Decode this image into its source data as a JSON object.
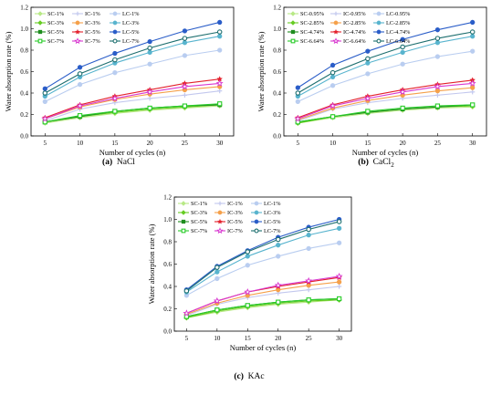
{
  "chart_data": [
    {
      "type": "line",
      "caption_letter": "(a)",
      "caption_name": "NaCl",
      "caption_sub": "",
      "xlabel": "Number of cycles (n)",
      "ylabel": "Water absorption rate (%)",
      "x": [
        5,
        10,
        15,
        20,
        25,
        30
      ],
      "xlim": [
        3,
        32
      ],
      "ylim": [
        0,
        1.2
      ],
      "yticks": [
        "0.0",
        "0.2",
        "0.4",
        "0.6",
        "0.8",
        "1.0",
        "1.2"
      ],
      "legend_position": "top-left",
      "series": [
        {
          "name": "SC-1%",
          "color": "#b8e986",
          "marker": "diamond",
          "values": [
            0.12,
            0.17,
            0.21,
            0.24,
            0.26,
            0.28
          ]
        },
        {
          "name": "IC-1%",
          "color": "#c3c8ee",
          "marker": "plus",
          "values": [
            0.14,
            0.25,
            0.31,
            0.35,
            0.38,
            0.42
          ]
        },
        {
          "name": "LC-1%",
          "color": "#b9cdf0",
          "marker": "circle",
          "values": [
            0.32,
            0.48,
            0.59,
            0.67,
            0.75,
            0.8
          ]
        },
        {
          "name": "SC-3%",
          "color": "#66cc22",
          "marker": "diamond",
          "values": [
            0.13,
            0.18,
            0.22,
            0.25,
            0.27,
            0.29
          ]
        },
        {
          "name": "IC-3%",
          "color": "#f5a04a",
          "marker": "circle",
          "values": [
            0.16,
            0.27,
            0.34,
            0.39,
            0.43,
            0.46
          ]
        },
        {
          "name": "LC-3%",
          "color": "#58b4ce",
          "marker": "circle",
          "values": [
            0.37,
            0.55,
            0.68,
            0.78,
            0.87,
            0.93
          ]
        },
        {
          "name": "SC-5%",
          "color": "#1e8c1e",
          "marker": "square",
          "values": [
            0.13,
            0.18,
            0.23,
            0.26,
            0.28,
            0.29
          ]
        },
        {
          "name": "IC-5%",
          "color": "#e3202b",
          "marker": "star",
          "values": [
            0.17,
            0.29,
            0.37,
            0.43,
            0.49,
            0.53
          ]
        },
        {
          "name": "LC-5%",
          "color": "#2a5dc8",
          "marker": "circle",
          "values": [
            0.44,
            0.64,
            0.77,
            0.88,
            0.98,
            1.06
          ]
        },
        {
          "name": "SC-7%",
          "color": "#28cc28",
          "marker": "square-open",
          "values": [
            0.13,
            0.19,
            0.23,
            0.26,
            0.28,
            0.3
          ]
        },
        {
          "name": "IC-7%",
          "color": "#d838d0",
          "marker": "star-open",
          "values": [
            0.16,
            0.28,
            0.35,
            0.41,
            0.46,
            0.49
          ]
        },
        {
          "name": "LC-7%",
          "color": "#1c6e6e",
          "marker": "circle-open",
          "values": [
            0.4,
            0.58,
            0.71,
            0.82,
            0.91,
            0.97
          ]
        }
      ]
    },
    {
      "type": "line",
      "caption_letter": "(b)",
      "caption_name": "CaCl",
      "caption_sub": "2",
      "xlabel": "Number of cycles (n)",
      "ylabel": "Water absorption rate (%)",
      "x": [
        5,
        10,
        15,
        20,
        25,
        30
      ],
      "xlim": [
        3,
        32
      ],
      "ylim": [
        0,
        1.2
      ],
      "yticks": [
        "0.0",
        "0.2",
        "0.4",
        "0.6",
        "0.8",
        "1.0",
        "1.2"
      ],
      "legend_position": "top-left",
      "series": [
        {
          "name": "SC-0.95%",
          "color": "#b8e986",
          "marker": "diamond",
          "values": [
            0.12,
            0.17,
            0.21,
            0.24,
            0.26,
            0.27
          ]
        },
        {
          "name": "IC-0.95%",
          "color": "#c3c8ee",
          "marker": "plus",
          "values": [
            0.14,
            0.25,
            0.31,
            0.35,
            0.38,
            0.41
          ]
        },
        {
          "name": "LC-0.95%",
          "color": "#b9cdf0",
          "marker": "circle",
          "values": [
            0.32,
            0.47,
            0.58,
            0.67,
            0.74,
            0.79
          ]
        },
        {
          "name": "SC-2.85%",
          "color": "#66cc22",
          "marker": "diamond",
          "values": [
            0.12,
            0.18,
            0.22,
            0.25,
            0.27,
            0.28
          ]
        },
        {
          "name": "IC-2.85%",
          "color": "#f5a04a",
          "marker": "circle",
          "values": [
            0.15,
            0.26,
            0.33,
            0.38,
            0.42,
            0.45
          ]
        },
        {
          "name": "LC-2.85%",
          "color": "#58b4ce",
          "marker": "circle",
          "values": [
            0.37,
            0.55,
            0.68,
            0.78,
            0.87,
            0.93
          ]
        },
        {
          "name": "SC-4.74%",
          "color": "#1e8c1e",
          "marker": "square",
          "values": [
            0.13,
            0.18,
            0.22,
            0.25,
            0.27,
            0.29
          ]
        },
        {
          "name": "IC-4.74%",
          "color": "#e3202b",
          "marker": "star",
          "values": [
            0.17,
            0.29,
            0.37,
            0.43,
            0.48,
            0.52
          ]
        },
        {
          "name": "LC-4.74%",
          "color": "#2a5dc8",
          "marker": "circle",
          "values": [
            0.45,
            0.66,
            0.79,
            0.9,
            0.99,
            1.06
          ]
        },
        {
          "name": "SC-6.64%",
          "color": "#28cc28",
          "marker": "square-open",
          "values": [
            0.13,
            0.18,
            0.23,
            0.26,
            0.28,
            0.29
          ]
        },
        {
          "name": "IC-6.64%",
          "color": "#d838d0",
          "marker": "star-open",
          "values": [
            0.16,
            0.28,
            0.35,
            0.41,
            0.46,
            0.49
          ]
        },
        {
          "name": "LC-6.64%",
          "color": "#1c6e6e",
          "marker": "circle-open",
          "values": [
            0.4,
            0.59,
            0.72,
            0.83,
            0.91,
            0.97
          ]
        }
      ]
    },
    {
      "type": "line",
      "caption_letter": "(c)",
      "caption_name": "KAc",
      "caption_sub": "",
      "xlabel": "Number of cycles (n)",
      "ylabel": "Water absorption rate (%)",
      "x": [
        5,
        10,
        15,
        20,
        25,
        30
      ],
      "xlim": [
        3,
        32
      ],
      "ylim": [
        0,
        1.2
      ],
      "yticks": [
        "0.0",
        "0.2",
        "0.4",
        "0.6",
        "0.8",
        "1.0",
        "1.2"
      ],
      "legend_position": "top-left",
      "series": [
        {
          "name": "SC-1%",
          "color": "#b8e986",
          "marker": "diamond",
          "values": [
            0.12,
            0.17,
            0.21,
            0.24,
            0.26,
            0.28
          ]
        },
        {
          "name": "IC-1%",
          "color": "#c3c8ee",
          "marker": "plus",
          "values": [
            0.14,
            0.24,
            0.3,
            0.34,
            0.37,
            0.4
          ]
        },
        {
          "name": "LC-1%",
          "color": "#b9cdf0",
          "marker": "circle",
          "values": [
            0.32,
            0.47,
            0.59,
            0.67,
            0.74,
            0.79
          ]
        },
        {
          "name": "SC-3%",
          "color": "#66cc22",
          "marker": "diamond",
          "values": [
            0.12,
            0.18,
            0.22,
            0.25,
            0.27,
            0.28
          ]
        },
        {
          "name": "IC-3%",
          "color": "#f5a04a",
          "marker": "circle",
          "values": [
            0.15,
            0.25,
            0.32,
            0.37,
            0.41,
            0.44
          ]
        },
        {
          "name": "LC-3%",
          "color": "#58b4ce",
          "marker": "circle",
          "values": [
            0.35,
            0.53,
            0.67,
            0.77,
            0.86,
            0.92
          ]
        },
        {
          "name": "SC-5%",
          "color": "#1e8c1e",
          "marker": "square",
          "values": [
            0.13,
            0.19,
            0.23,
            0.26,
            0.28,
            0.29
          ]
        },
        {
          "name": "IC-5%",
          "color": "#e3202b",
          "marker": "star",
          "values": [
            0.16,
            0.27,
            0.35,
            0.4,
            0.44,
            0.48
          ]
        },
        {
          "name": "LC-5%",
          "color": "#2a5dc8",
          "marker": "circle",
          "values": [
            0.37,
            0.58,
            0.72,
            0.84,
            0.93,
            1.0
          ]
        },
        {
          "name": "SC-7%",
          "color": "#28cc28",
          "marker": "square-open",
          "values": [
            0.13,
            0.19,
            0.23,
            0.26,
            0.28,
            0.29
          ]
        },
        {
          "name": "IC-7%",
          "color": "#d838d0",
          "marker": "star-open",
          "values": [
            0.16,
            0.27,
            0.35,
            0.41,
            0.45,
            0.49
          ]
        },
        {
          "name": "LC-7%",
          "color": "#1c6e6e",
          "marker": "circle-open",
          "values": [
            0.36,
            0.57,
            0.71,
            0.82,
            0.91,
            0.98
          ]
        }
      ]
    }
  ]
}
